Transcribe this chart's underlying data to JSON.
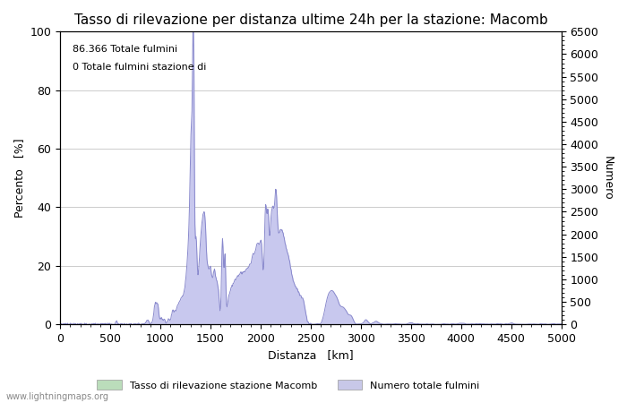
{
  "title": "Tasso di rilevazione per distanza ultime 24h per la stazione: Macomb",
  "xlabel": "Distanza   [km]",
  "ylabel_left": "Percento   [%]",
  "ylabel_right": "Numero",
  "annotation_lines": [
    "86.366 Totale fulmini",
    "0 Totale fulmini stazione di"
  ],
  "legend_labels": [
    "Tasso di rilevazione stazione Macomb",
    "Numero totale fulmini"
  ],
  "legend_colors": [
    "#bbddbb",
    "#c8c8e8"
  ],
  "xlim": [
    0,
    5000
  ],
  "ylim_left": [
    0,
    100
  ],
  "ylim_right": [
    0,
    6500
  ],
  "fill_color": "#c8c8ee",
  "line_color": "#8888cc",
  "bg_color": "#ffffff",
  "grid_color": "#cccccc",
  "watermark": "www.lightningmaps.org",
  "title_fontsize": 11,
  "tick_fontsize": 9,
  "label_fontsize": 9,
  "xticks": [
    0,
    500,
    1000,
    1500,
    2000,
    2500,
    3000,
    3500,
    4000,
    4500,
    5000
  ],
  "yticks_left": [
    0,
    20,
    40,
    60,
    80,
    100
  ],
  "yticks_right": [
    0,
    500,
    1000,
    1500,
    2000,
    2500,
    3000,
    3500,
    4000,
    4500,
    5000,
    5500,
    6000,
    6500
  ]
}
